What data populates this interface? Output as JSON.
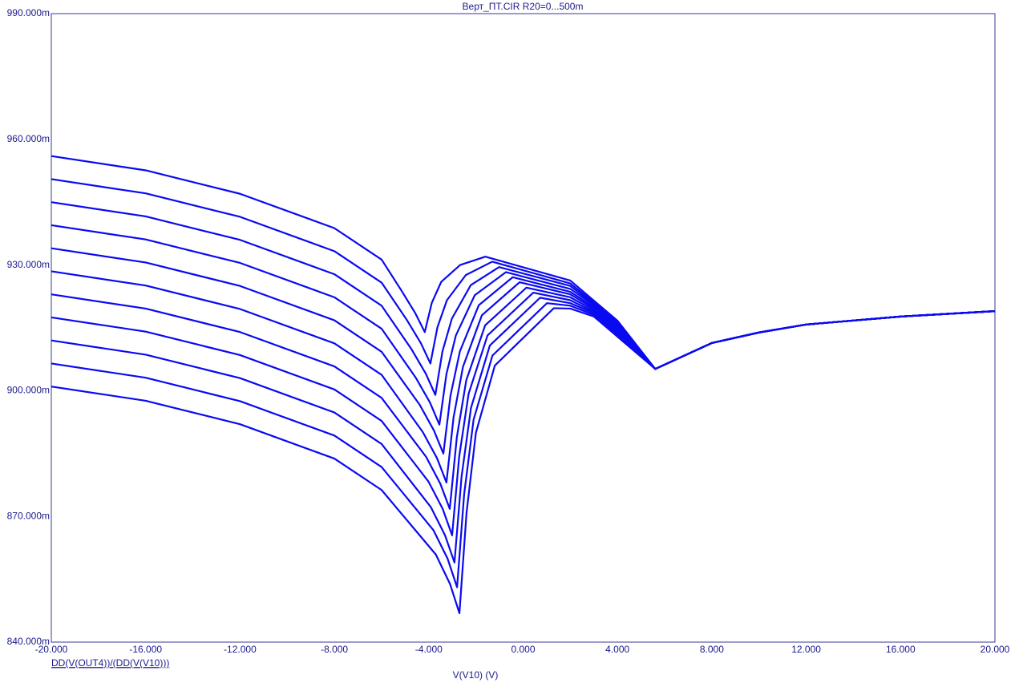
{
  "chart_data": {
    "type": "line",
    "title": "Верт_ПТ.CIR R20=0...500m",
    "x_label": "V(V10) (V)",
    "y_label": "DD(V(OUT4))/(DD(V(V10)))",
    "xlim": [
      -20,
      20
    ],
    "ylim": [
      0.84,
      0.99
    ],
    "xticks": [
      {
        "value": -20,
        "label": "-20.000"
      },
      {
        "value": -16,
        "label": "-16.000"
      },
      {
        "value": -12,
        "label": "-12.000"
      },
      {
        "value": -8,
        "label": "-8.000"
      },
      {
        "value": -4,
        "label": "-4.000"
      },
      {
        "value": 0,
        "label": "0.000"
      },
      {
        "value": 4,
        "label": "4.000"
      },
      {
        "value": 8,
        "label": "8.000"
      },
      {
        "value": 12,
        "label": "12.000"
      },
      {
        "value": 16,
        "label": "16.000"
      },
      {
        "value": 20,
        "label": "20.000"
      }
    ],
    "yticks": [
      {
        "value": 0.84,
        "label": "840.000m"
      },
      {
        "value": 0.87,
        "label": "870.000m"
      },
      {
        "value": 0.9,
        "label": "900.000m"
      },
      {
        "value": 0.93,
        "label": "930.000m"
      },
      {
        "value": 0.96,
        "label": "960.000m"
      },
      {
        "value": 0.99,
        "label": "990.000m"
      }
    ],
    "grid": false,
    "series": [
      {
        "color": "#0a0af0",
        "x": [
          -20,
          -16,
          -12,
          -8,
          -6,
          -5.17,
          -4.57,
          -4.17,
          -3.87,
          -3.47,
          -2.67,
          -1.6,
          2,
          3,
          4,
          5.6,
          8,
          10,
          12,
          16,
          20
        ],
        "values": [
          0.956,
          0.9526,
          0.947,
          0.9388,
          0.9313,
          0.924,
          0.9185,
          0.914,
          0.921,
          0.926,
          0.93,
          0.932,
          0.9263,
          0.9215,
          0.9167,
          0.9052,
          0.9114,
          0.9139,
          0.9158,
          0.9177,
          0.919
        ]
      },
      {
        "color": "#0a0af0",
        "x": [
          -20,
          -16,
          -12,
          -8,
          -6,
          -4.93,
          -4.33,
          -3.93,
          -3.63,
          -3.23,
          -2.43,
          -1.31,
          2,
          3,
          4,
          5.6,
          8,
          10,
          12,
          16,
          20
        ],
        "values": [
          0.9505,
          0.9471,
          0.9415,
          0.9333,
          0.9258,
          0.9169,
          0.9113,
          0.9065,
          0.9152,
          0.9216,
          0.9276,
          0.9308,
          0.9256,
          0.9211,
          0.9163,
          0.9052,
          0.9114,
          0.9139,
          0.9158,
          0.9177,
          0.919
        ]
      },
      {
        "color": "#0a0af0",
        "x": [
          -20,
          -16,
          -12,
          -8,
          -6,
          -4.72,
          -4.12,
          -3.72,
          -3.42,
          -3.02,
          -2.22,
          -1.02,
          2,
          3,
          4,
          5.6,
          8,
          10,
          12,
          16,
          20
        ],
        "values": [
          0.945,
          0.9416,
          0.936,
          0.9278,
          0.9203,
          0.9098,
          0.904,
          0.899,
          0.9094,
          0.9172,
          0.9252,
          0.9295,
          0.925,
          0.9207,
          0.9159,
          0.9052,
          0.9114,
          0.9139,
          0.9158,
          0.9177,
          0.919
        ]
      },
      {
        "color": "#0a0af0",
        "x": [
          -20,
          -16,
          -12,
          -8,
          -6,
          -4.55,
          -3.95,
          -3.55,
          -3.25,
          -2.85,
          -2.05,
          -0.73,
          2,
          3,
          4,
          5.6,
          8,
          10,
          12,
          16,
          20
        ],
        "values": [
          0.9395,
          0.9361,
          0.9305,
          0.9223,
          0.9148,
          0.9031,
          0.8972,
          0.8919,
          0.904,
          0.9132,
          0.9228,
          0.9283,
          0.9243,
          0.9204,
          0.9156,
          0.9052,
          0.9114,
          0.9139,
          0.9158,
          0.9177,
          0.919
        ]
      },
      {
        "color": "#0a0af0",
        "x": [
          -20,
          -16,
          -12,
          -8,
          -6,
          -4.38,
          -3.78,
          -3.38,
          -3.08,
          -2.68,
          -1.88,
          -0.44,
          2,
          3,
          4,
          5.6,
          8,
          10,
          12,
          16,
          20
        ],
        "values": [
          0.934,
          0.9306,
          0.925,
          0.9168,
          0.9093,
          0.8966,
          0.8905,
          0.885,
          0.8988,
          0.9094,
          0.9204,
          0.9271,
          0.9236,
          0.92,
          0.9152,
          0.9052,
          0.9114,
          0.9139,
          0.9158,
          0.9177,
          0.919
        ]
      },
      {
        "color": "#0a0af0",
        "x": [
          -20,
          -16,
          -12,
          -8,
          -6,
          -4.25,
          -3.65,
          -3.25,
          -2.95,
          -2.55,
          -1.75,
          -0.15,
          2,
          3,
          4,
          5.6,
          8,
          10,
          12,
          16,
          20
        ],
        "values": [
          0.9285,
          0.9251,
          0.9195,
          0.9113,
          0.9038,
          0.8901,
          0.8839,
          0.8781,
          0.8936,
          0.9057,
          0.918,
          0.9259,
          0.923,
          0.9196,
          0.9148,
          0.9052,
          0.9114,
          0.9139,
          0.9158,
          0.9177,
          0.919
        ]
      },
      {
        "color": "#0a0af0",
        "x": [
          -20,
          -16,
          -12,
          -8,
          -6,
          -4.11,
          -3.51,
          -3.11,
          -2.81,
          -2.41,
          -1.61,
          0.14,
          2,
          3,
          4,
          5.6,
          8,
          10,
          12,
          16,
          20
        ],
        "values": [
          0.923,
          0.9196,
          0.914,
          0.9058,
          0.8983,
          0.8842,
          0.8778,
          0.8718,
          0.8889,
          0.9025,
          0.9156,
          0.9246,
          0.9223,
          0.9192,
          0.9144,
          0.9052,
          0.9114,
          0.9139,
          0.9158,
          0.9177,
          0.919
        ]
      },
      {
        "color": "#0a0af0",
        "x": [
          -20,
          -16,
          -12,
          -8,
          -6,
          -4.01,
          -3.41,
          -3.01,
          -2.71,
          -2.31,
          -1.51,
          0.43,
          2,
          3,
          4,
          5.6,
          8,
          10,
          12,
          16,
          20
        ],
        "values": [
          0.9175,
          0.9141,
          0.9085,
          0.9003,
          0.8928,
          0.8783,
          0.8718,
          0.8655,
          0.8843,
          0.8993,
          0.9132,
          0.9234,
          0.9216,
          0.9188,
          0.914,
          0.9052,
          0.9114,
          0.9139,
          0.9158,
          0.9177,
          0.919
        ]
      },
      {
        "color": "#0a0af0",
        "x": [
          -20,
          -16,
          -12,
          -8,
          -6,
          -3.91,
          -3.31,
          -2.91,
          -2.61,
          -2.21,
          -1.41,
          0.72,
          2,
          3,
          4,
          5.6,
          8,
          10,
          12,
          16,
          20
        ],
        "values": [
          0.912,
          0.9086,
          0.903,
          0.8948,
          0.8873,
          0.8722,
          0.8655,
          0.859,
          0.8795,
          0.8959,
          0.9108,
          0.9222,
          0.9209,
          0.9185,
          0.9137,
          0.9052,
          0.9114,
          0.9139,
          0.9158,
          0.9177,
          0.919
        ]
      },
      {
        "color": "#0a0af0",
        "x": [
          -20,
          -16,
          -12,
          -8,
          -6,
          -3.8,
          -3.2,
          -2.8,
          -2.5,
          -2.1,
          -1.3,
          1.01,
          2,
          3,
          4,
          5.6,
          8,
          10,
          12,
          16,
          20
        ],
        "values": [
          0.9065,
          0.9031,
          0.8975,
          0.8893,
          0.8818,
          0.8667,
          0.8599,
          0.8531,
          0.8753,
          0.8931,
          0.9084,
          0.9209,
          0.9203,
          0.9181,
          0.9133,
          0.9052,
          0.9114,
          0.9139,
          0.9158,
          0.9177,
          0.919
        ]
      },
      {
        "color": "#0a0af0",
        "x": [
          -20,
          -16,
          -12,
          -8,
          -6,
          -3.7,
          -3.1,
          -2.7,
          -2.4,
          -2.0,
          -1.2,
          1.3,
          2,
          3,
          4,
          5.6,
          8,
          10,
          12,
          16,
          20
        ],
        "values": [
          0.901,
          0.8976,
          0.892,
          0.8838,
          0.8763,
          0.8609,
          0.8539,
          0.8469,
          0.8708,
          0.89,
          0.906,
          0.9197,
          0.9196,
          0.9177,
          0.9129,
          0.9052,
          0.9114,
          0.9139,
          0.9158,
          0.9177,
          0.919
        ]
      }
    ]
  }
}
